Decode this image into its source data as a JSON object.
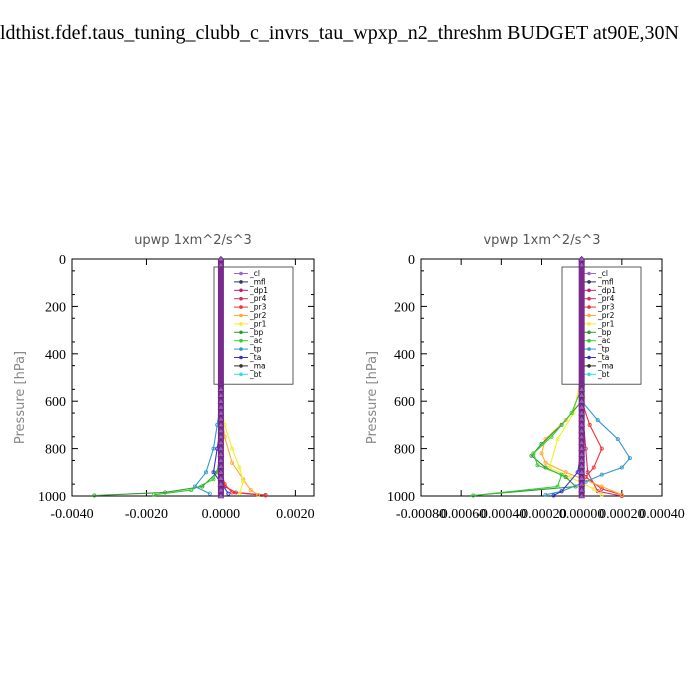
{
  "title": "ldthist.fdef.taus_tuning_clubb_c_invrs_tau_wpxp_n2_threshm  BUDGET at90E,30N",
  "chart_data": [
    {
      "type": "line",
      "title": "upwp   1xm^2/s^3",
      "ylabel": "Pressure [hPa]",
      "xlim": [
        -0.004,
        0.0025
      ],
      "ylim": [
        1000,
        0
      ],
      "yticks": [
        0,
        200,
        400,
        600,
        800,
        1000
      ],
      "xtick_labels": [
        "-0.0040",
        "-0.0020",
        "0.0000",
        "0.0020"
      ],
      "xtick_values": [
        -0.004,
        -0.002,
        0.0,
        0.002
      ],
      "grid": false,
      "legend": "top-right",
      "series": [
        {
          "name": "_cl",
          "color": "#9966cc",
          "marker": "tri",
          "points": [
            [
              0,
              0
            ],
            [
              0,
              1000
            ]
          ]
        },
        {
          "name": "_mfl",
          "color": "#333366",
          "marker": "dia",
          "points": [
            [
              0,
              0
            ],
            [
              0,
              1000
            ]
          ]
        },
        {
          "name": "_dp1",
          "color": "#bb2277",
          "marker": "tri",
          "points": [
            [
              0,
              0
            ],
            [
              0,
              1000
            ]
          ]
        },
        {
          "name": "_pr4",
          "color": "#cc3366",
          "marker": "tri",
          "points": [
            [
              0,
              0
            ],
            [
              0,
              900
            ],
            [
              0.0001,
              960
            ],
            [
              0.0004,
              985
            ],
            [
              0.0012,
              996
            ]
          ]
        },
        {
          "name": "_pr3",
          "color": "#ee3333",
          "marker": "sq",
          "points": [
            [
              0,
              0
            ],
            [
              0,
              880
            ],
            [
              0.0001,
              950
            ],
            [
              0.0003,
              985
            ],
            [
              0.0012,
              998
            ]
          ]
        },
        {
          "name": "_pr2",
          "color": "#ffaa33",
          "marker": "tri",
          "points": [
            [
              0,
              0
            ],
            [
              0,
              600
            ],
            [
              0.0001,
              750
            ],
            [
              0.0003,
              860
            ],
            [
              0.0006,
              930
            ],
            [
              0.0008,
              975
            ],
            [
              0.001,
              995
            ]
          ]
        },
        {
          "name": "_pr1",
          "color": "#eeee33",
          "marker": "tri",
          "points": [
            [
              0,
              0
            ],
            [
              0,
              600
            ],
            [
              0.0001,
              700
            ],
            [
              0.0003,
              800
            ],
            [
              0.0005,
              880
            ],
            [
              0.0006,
              940
            ],
            [
              0.0005,
              990
            ]
          ]
        },
        {
          "name": "_bp",
          "color": "#339933",
          "marker": "x",
          "points": [
            [
              0,
              0
            ],
            [
              0,
              800
            ],
            [
              -0.0001,
              900
            ],
            [
              -0.0005,
              960
            ],
            [
              -0.0015,
              985
            ],
            [
              -0.0034,
              998
            ]
          ]
        },
        {
          "name": "_ac",
          "color": "#33cc33",
          "marker": "x",
          "points": [
            [
              0,
              0
            ],
            [
              0,
              850
            ],
            [
              -0.0002,
              930
            ],
            [
              -0.0008,
              975
            ],
            [
              -0.0018,
              995
            ]
          ]
        },
        {
          "name": "_tp",
          "color": "#3399cc",
          "marker": "x",
          "points": [
            [
              0,
              0
            ],
            [
              0,
              600
            ],
            [
              -0.0001,
              700
            ],
            [
              -0.0002,
              800
            ],
            [
              -0.0004,
              900
            ],
            [
              -0.0007,
              960
            ],
            [
              -0.0003,
              990
            ]
          ]
        },
        {
          "name": "_ta",
          "color": "#3333cc",
          "marker": "plus",
          "points": [
            [
              0,
              0
            ],
            [
              0,
              700
            ],
            [
              -0.0001,
              800
            ],
            [
              -0.0002,
              900
            ],
            [
              0.0002,
              990
            ]
          ]
        },
        {
          "name": "_ma",
          "color": "#333333",
          "marker": "none",
          "points": [
            [
              0,
              0
            ],
            [
              0,
              1000
            ]
          ]
        },
        {
          "name": "_bt",
          "color": "#33dddd",
          "marker": "dia",
          "points": [
            [
              0,
              0
            ],
            [
              0,
              1000
            ]
          ]
        }
      ]
    },
    {
      "type": "line",
      "title": "vpwp   1xm^2/s^3",
      "ylabel": "Pressure [hPa]",
      "xlim": [
        -0.0008,
        0.0004
      ],
      "ylim": [
        1000,
        0
      ],
      "yticks": [
        0,
        200,
        400,
        600,
        800,
        1000
      ],
      "xtick_labels": [
        "-0.00080",
        "-0.00060",
        "-0.00040",
        "-0.00020",
        "0.00000",
        "0.00020",
        "0.00040"
      ],
      "xtick_values": [
        -0.0008,
        -0.0006,
        -0.0004,
        -0.0002,
        0.0,
        0.0002,
        0.0004
      ],
      "grid": false,
      "legend": "top-right",
      "series": [
        {
          "name": "_cl",
          "color": "#9966cc",
          "marker": "tri",
          "points": [
            [
              0,
              0
            ],
            [
              0,
              1000
            ]
          ]
        },
        {
          "name": "_mfl",
          "color": "#333366",
          "marker": "dia",
          "points": [
            [
              0,
              0
            ],
            [
              0,
              1000
            ]
          ]
        },
        {
          "name": "_dp1",
          "color": "#bb2277",
          "marker": "tri",
          "points": [
            [
              0,
              0
            ],
            [
              0,
              1000
            ]
          ]
        },
        {
          "name": "_pr4",
          "color": "#cc3366",
          "marker": "tri",
          "points": [
            [
              0,
              0
            ],
            [
              0,
              600
            ],
            [
              2e-05,
              800
            ],
            [
              3e-05,
              900
            ],
            [
              8e-05,
              980
            ],
            [
              0.0002,
              1000
            ]
          ]
        },
        {
          "name": "_pr3",
          "color": "#ee3333",
          "marker": "sq",
          "points": [
            [
              0,
              0
            ],
            [
              0,
              600
            ],
            [
              4e-05,
              700
            ],
            [
              0.0001,
              800
            ],
            [
              6e-05,
              880
            ],
            [
              2e-05,
              920
            ],
            [
              0.0001,
              970
            ],
            [
              0.0002,
              995
            ]
          ]
        },
        {
          "name": "_pr2",
          "color": "#ffaa33",
          "marker": "tri",
          "points": [
            [
              0,
              0
            ],
            [
              0,
              600
            ],
            [
              -8e-05,
              680
            ],
            [
              -0.00018,
              760
            ],
            [
              -0.0002,
              820
            ],
            [
              -0.00018,
              860
            ],
            [
              -8e-05,
              900
            ],
            [
              0.0001,
              960
            ],
            [
              0.0002,
              995
            ]
          ]
        },
        {
          "name": "_pr1",
          "color": "#eeee33",
          "marker": "tri",
          "points": [
            [
              0,
              0
            ],
            [
              0,
              250
            ],
            [
              2e-05,
              400
            ],
            [
              -4e-05,
              650
            ],
            [
              -0.00012,
              760
            ],
            [
              -0.00016,
              880
            ],
            [
              -6e-05,
              920
            ],
            [
              6e-05,
              970
            ],
            [
              0.0001,
              995
            ]
          ]
        },
        {
          "name": "_bp",
          "color": "#339933",
          "marker": "x",
          "points": [
            [
              0,
              0
            ],
            [
              0,
              600
            ],
            [
              -0.0001,
              700
            ],
            [
              -0.0002,
              780
            ],
            [
              -0.00025,
              830
            ],
            [
              -0.00018,
              880
            ],
            [
              -8e-05,
              920
            ],
            [
              -3e-05,
              960
            ],
            [
              -0.00054,
              998
            ]
          ]
        },
        {
          "name": "_ac",
          "color": "#33cc33",
          "marker": "x",
          "points": [
            [
              0,
              0
            ],
            [
              0,
              400
            ],
            [
              2e-05,
              500
            ],
            [
              -5e-05,
              650
            ],
            [
              -0.00015,
              750
            ],
            [
              -0.00024,
              820
            ],
            [
              -0.00022,
              870
            ],
            [
              -0.0001,
              910
            ],
            [
              -0.00012,
              960
            ],
            [
              -0.00054,
              998
            ]
          ]
        },
        {
          "name": "_tp",
          "color": "#3399cc",
          "marker": "x",
          "points": [
            [
              0,
              0
            ],
            [
              0,
              600
            ],
            [
              8e-05,
              680
            ],
            [
              0.00018,
              760
            ],
            [
              0.00024,
              840
            ],
            [
              0.0002,
              880
            ],
            [
              0.0001,
              910
            ],
            [
              2e-05,
              940
            ],
            [
              -0.0001,
              980
            ],
            [
              -0.00018,
              995
            ]
          ]
        },
        {
          "name": "_ta",
          "color": "#3333cc",
          "marker": "plus",
          "points": [
            [
              0,
              0
            ],
            [
              0,
              800
            ],
            [
              -2e-05,
              900
            ],
            [
              -0.0001,
              980
            ],
            [
              -0.00014,
              998
            ]
          ]
        },
        {
          "name": "_ma",
          "color": "#333333",
          "marker": "none",
          "points": [
            [
              0,
              0
            ],
            [
              0,
              1000
            ]
          ]
        },
        {
          "name": "_bt",
          "color": "#33dddd",
          "marker": "dia",
          "points": [
            [
              0,
              0
            ],
            [
              0,
              1000
            ]
          ]
        }
      ]
    }
  ]
}
